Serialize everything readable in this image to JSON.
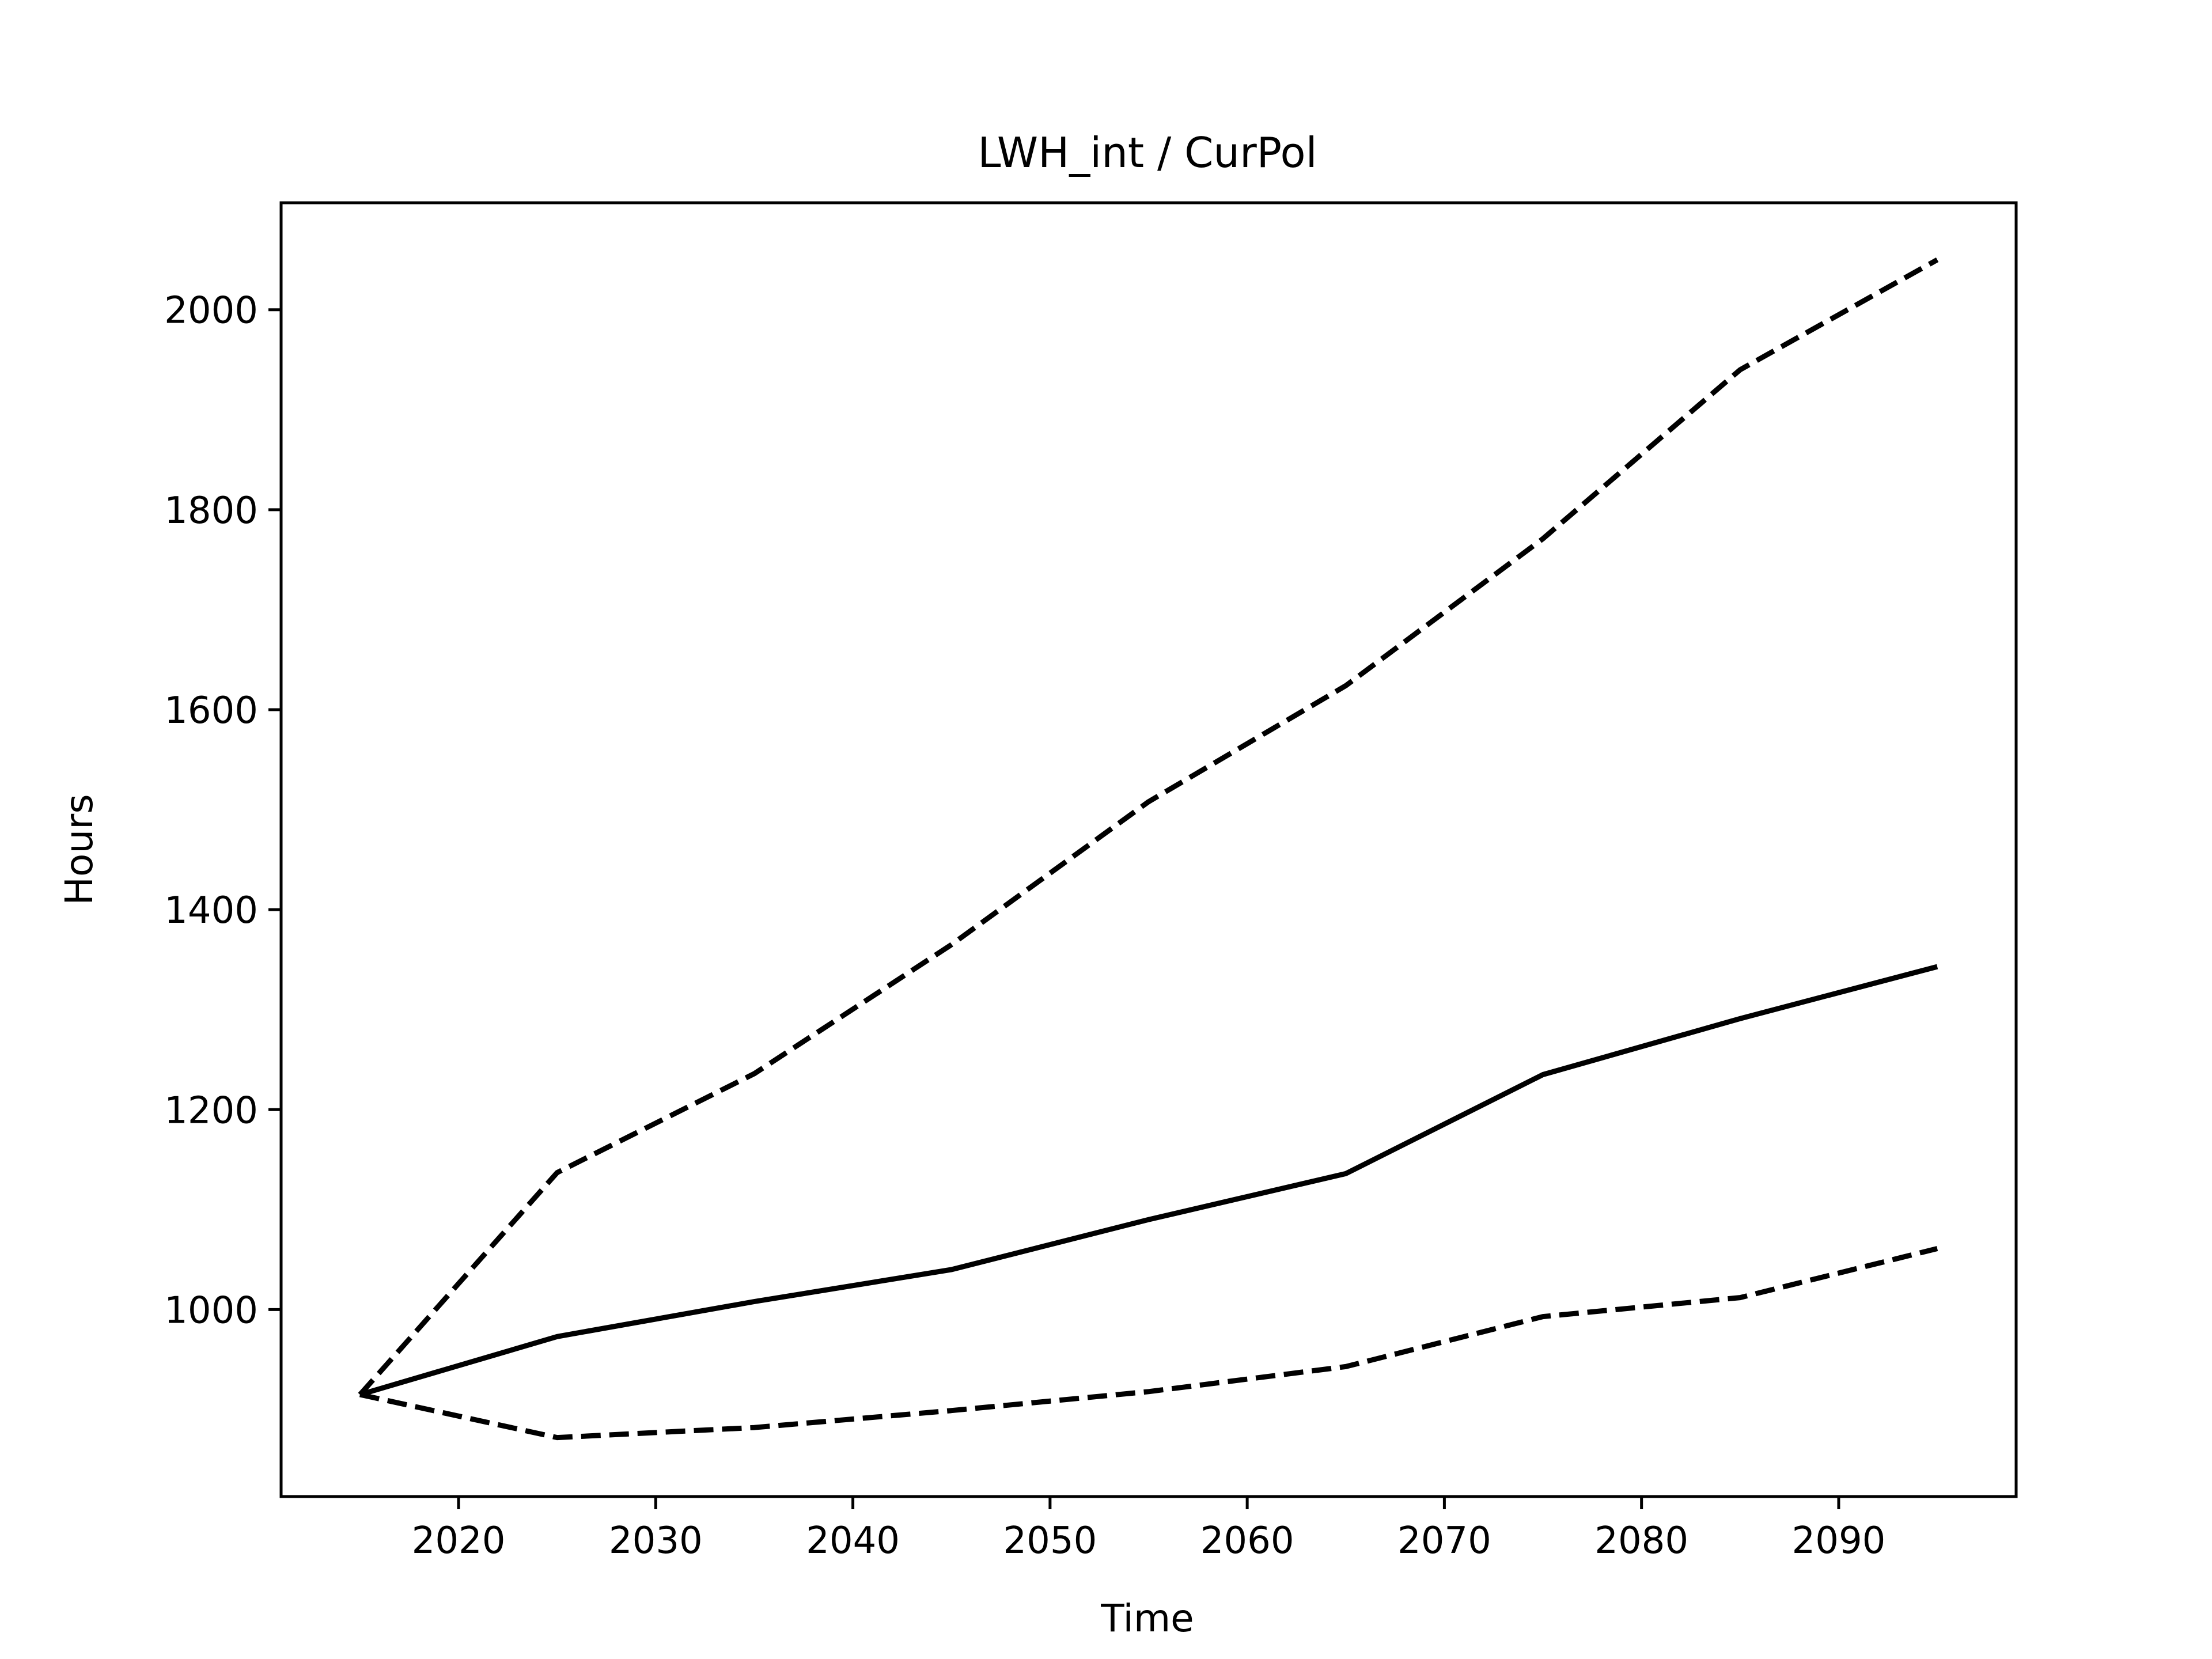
{
  "chart_data": {
    "type": "line",
    "title": "LWH_int / CurPol",
    "xlabel": "Time",
    "ylabel": "Hours",
    "xlim": [
      2011,
      2099
    ],
    "ylim": [
      813,
      2107
    ],
    "xticks": [
      2020,
      2030,
      2040,
      2050,
      2060,
      2070,
      2080,
      2090
    ],
    "yticks": [
      1000,
      1200,
      1400,
      1600,
      1800,
      2000
    ],
    "grid": false,
    "x": [
      2015,
      2025,
      2035,
      2045,
      2055,
      2065,
      2075,
      2085,
      2095
    ],
    "series": [
      {
        "style": "solid",
        "color": "#000000",
        "values": [
          915,
          973,
          1008,
          1040,
          1090,
          1136,
          1235,
          1291,
          1343
        ]
      },
      {
        "style": "dashed",
        "color": "#000000",
        "values": [
          915,
          1137,
          1236,
          1365,
          1508,
          1624,
          1771,
          1940,
          2050
        ]
      },
      {
        "style": "dashed",
        "color": "#000000",
        "values": [
          915,
          872,
          882,
          899,
          918,
          943,
          993,
          1012,
          1061
        ]
      }
    ]
  }
}
